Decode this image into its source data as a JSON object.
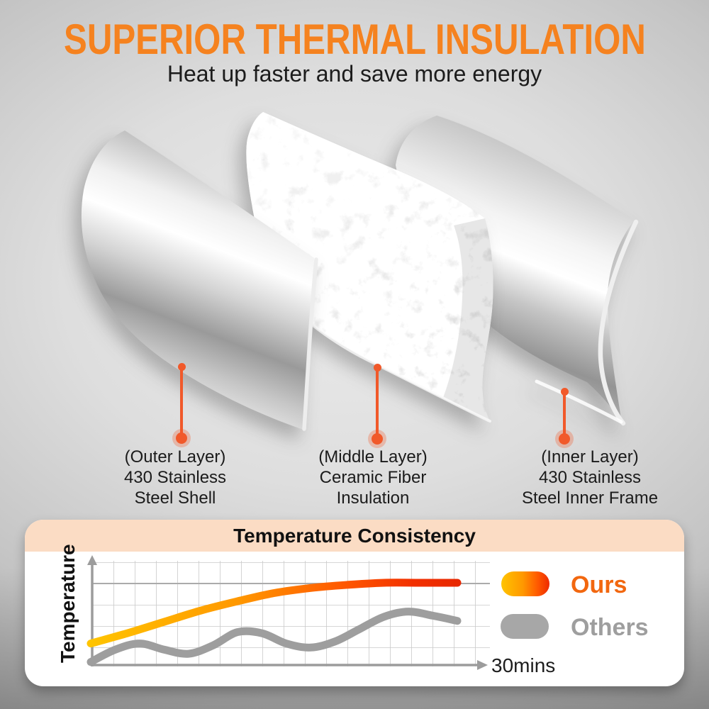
{
  "page": {
    "title": "SUPERIOR THERMAL INSULATION",
    "subtitle": "Heat up faster and save more energy"
  },
  "colors": {
    "title_orange": "#F5821F",
    "pin_orange": "#F1592A",
    "ours_text_orange": "#F2670F",
    "others_gray": "#9E9E9E",
    "panel_header_peach": "#FBDCC4",
    "text_dark": "#1B1B1B",
    "ours_gradient": [
      "#FFC400",
      "#FF9800",
      "#FF5A00",
      "#ED2A00"
    ]
  },
  "layers": [
    {
      "id": "outer",
      "line1": "(Outer Layer)",
      "line2": "430 Stainless",
      "line3": "Steel Shell"
    },
    {
      "id": "middle",
      "line1": "(Middle Layer)",
      "line2": "Ceramic Fiber",
      "line3": "Insulation"
    },
    {
      "id": "inner",
      "line1": "(Inner Layer)",
      "line2": "430 Stainless",
      "line3": "Steel Inner Frame"
    }
  ],
  "chart_panel": {
    "title": "Temperature Consistency",
    "y_axis_label": "Temperature",
    "x_axis_label": "30mins",
    "legend": [
      {
        "label": "Ours"
      },
      {
        "label": "Others"
      }
    ]
  },
  "chart_data": {
    "type": "line",
    "title": "Temperature Consistency",
    "xlabel": "30mins",
    "ylabel": "Temperature",
    "x_range_minutes": [
      0,
      30
    ],
    "y_axis_note": "relative temperature, no tick labels shown",
    "grid": true,
    "legend_position": "right",
    "series": [
      {
        "name": "Ours",
        "style": "yellow-to-red gradient, rises quickly then plateaus high",
        "points": [
          [
            0,
            21
          ],
          [
            3,
            31
          ],
          [
            6,
            42
          ],
          [
            9,
            53
          ],
          [
            12,
            62
          ],
          [
            15,
            70
          ],
          [
            18,
            75
          ],
          [
            21,
            78
          ],
          [
            24,
            80
          ],
          [
            27,
            80
          ],
          [
            30,
            80
          ]
        ]
      },
      {
        "name": "Others",
        "style": "gray, low wavy line with slow irregular rise",
        "points": [
          [
            0,
            3
          ],
          [
            2,
            15
          ],
          [
            4,
            21
          ],
          [
            6,
            15
          ],
          [
            8,
            11
          ],
          [
            10,
            19
          ],
          [
            12,
            32
          ],
          [
            14,
            31
          ],
          [
            16,
            21
          ],
          [
            18,
            17
          ],
          [
            20,
            23
          ],
          [
            22,
            35
          ],
          [
            24,
            47
          ],
          [
            26,
            52
          ],
          [
            28,
            48
          ],
          [
            30,
            43
          ]
        ]
      }
    ]
  }
}
